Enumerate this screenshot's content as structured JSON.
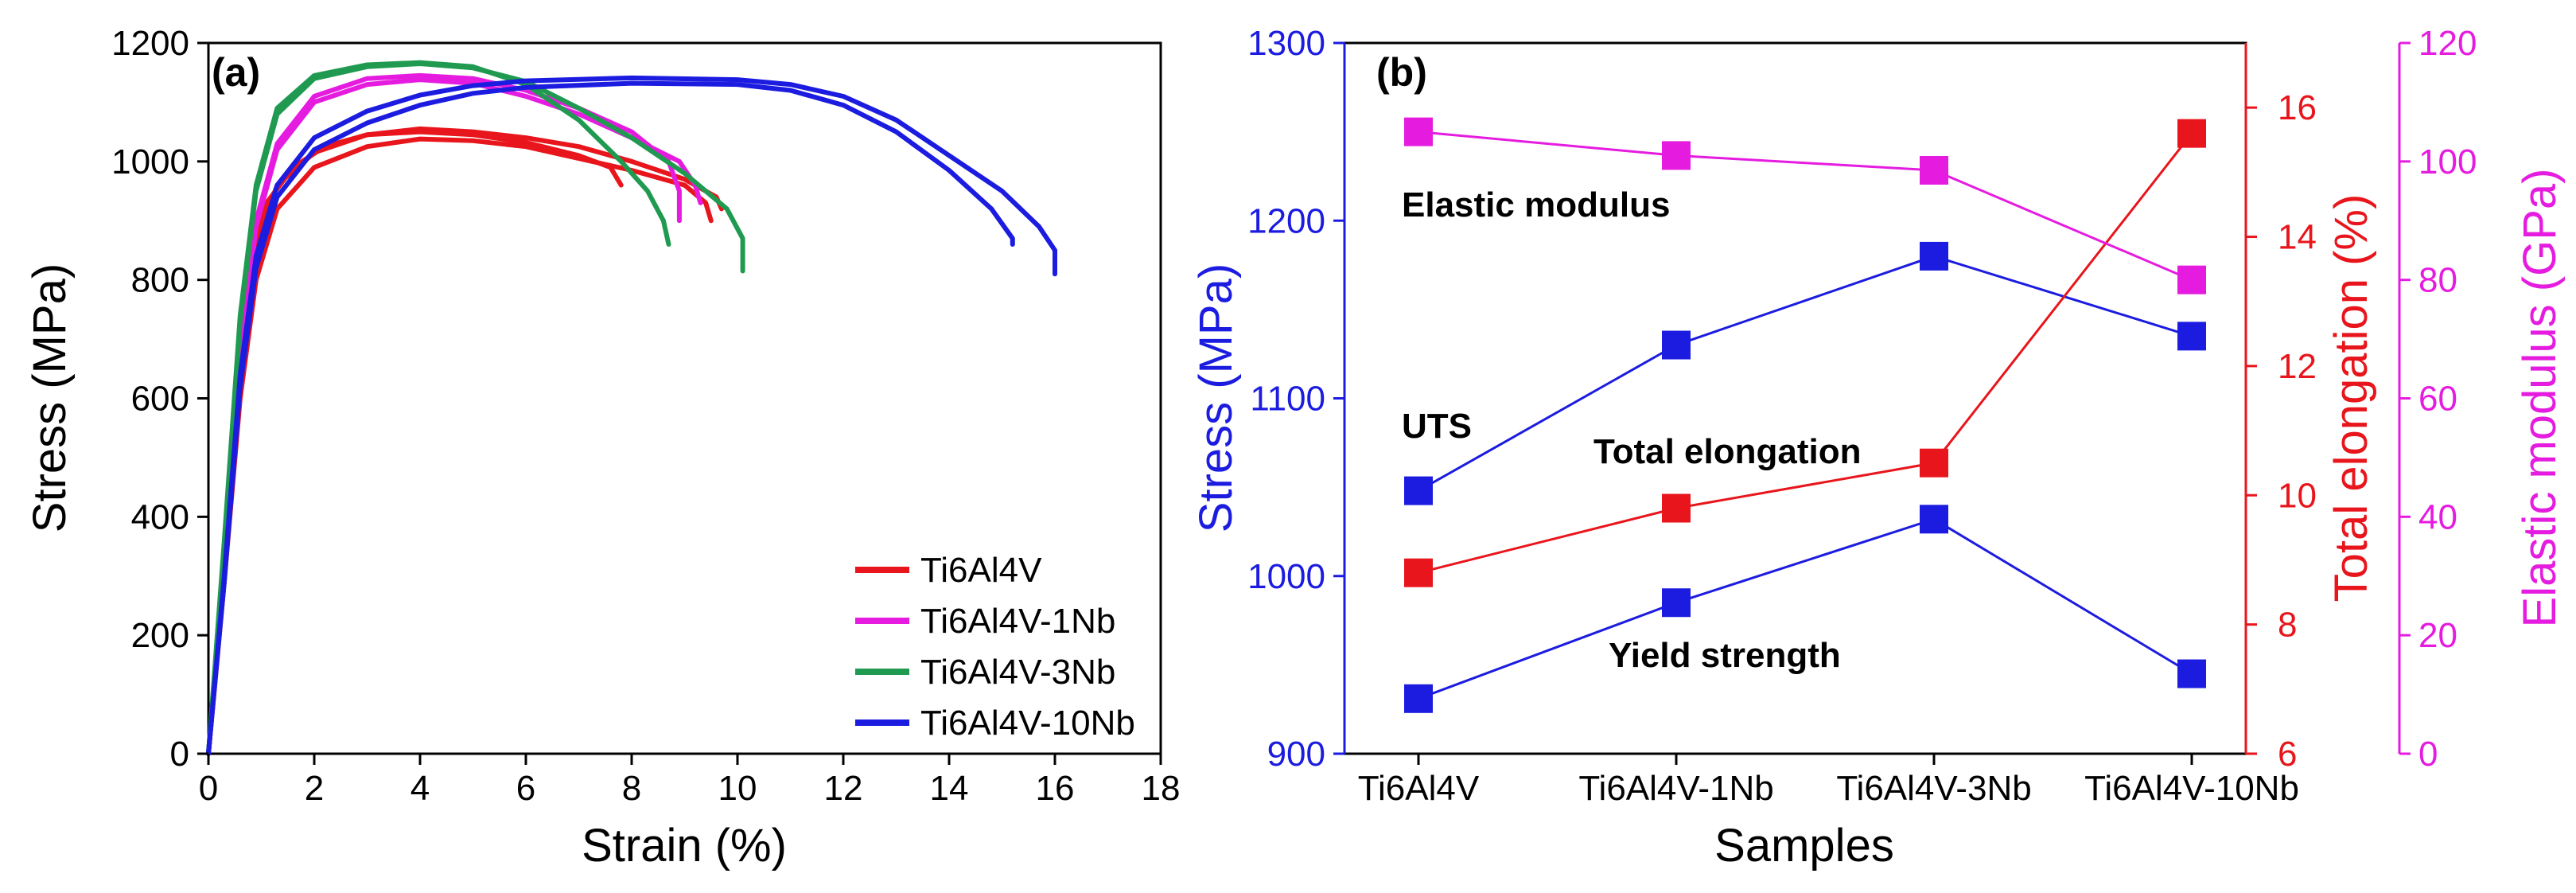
{
  "chart_data": [
    {
      "type": "line",
      "panel_label": "(a)",
      "xlabel": "Strain (%)",
      "ylabel": "Stress (MPa)",
      "xlim": [
        0,
        18
      ],
      "ylim": [
        0,
        1200
      ],
      "xticks": [
        0,
        2,
        4,
        6,
        8,
        10,
        12,
        14,
        16,
        18
      ],
      "yticks": [
        0,
        200,
        400,
        600,
        800,
        1000,
        1200
      ],
      "grid": false,
      "legend_position": "bottom-right",
      "series": [
        {
          "name": "Ti6Al4V",
          "color": "#e8161c",
          "curves": [
            [
              [
                0,
                0
              ],
              [
                0.3,
                300
              ],
              [
                0.55,
                620
              ],
              [
                0.8,
                820
              ],
              [
                1.1,
                930
              ],
              [
                1.6,
                990
              ],
              [
                2.2,
                1025
              ],
              [
                3,
                1045
              ],
              [
                4,
                1050
              ],
              [
                5,
                1045
              ],
              [
                6,
                1032
              ],
              [
                7,
                1010
              ],
              [
                7.6,
                990
              ],
              [
                7.8,
                960
              ]
            ],
            [
              [
                0,
                0
              ],
              [
                0.3,
                320
              ],
              [
                0.6,
                660
              ],
              [
                0.9,
                860
              ],
              [
                1.3,
                960
              ],
              [
                2,
                1015
              ],
              [
                3,
                1045
              ],
              [
                4,
                1055
              ],
              [
                5,
                1050
              ],
              [
                6,
                1040
              ],
              [
                7,
                1025
              ],
              [
                8,
                1000
              ],
              [
                9,
                970
              ],
              [
                9.6,
                940
              ],
              [
                9.7,
                920
              ]
            ],
            [
              [
                0,
                0
              ],
              [
                0.3,
                290
              ],
              [
                0.6,
                600
              ],
              [
                0.9,
                800
              ],
              [
                1.3,
                920
              ],
              [
                2,
                990
              ],
              [
                3,
                1025
              ],
              [
                4,
                1038
              ],
              [
                5,
                1035
              ],
              [
                6,
                1025
              ],
              [
                7,
                1005
              ],
              [
                8,
                985
              ],
              [
                9,
                960
              ],
              [
                9.4,
                930
              ],
              [
                9.5,
                900
              ]
            ]
          ]
        },
        {
          "name": "Ti6Al4V-1Nb",
          "color": "#e51ce0",
          "curves": [
            [
              [
                0,
                0
              ],
              [
                0.3,
                330
              ],
              [
                0.6,
                680
              ],
              [
                0.9,
                900
              ],
              [
                1.3,
                1030
              ],
              [
                2,
                1110
              ],
              [
                3,
                1140
              ],
              [
                4,
                1145
              ],
              [
                5,
                1140
              ],
              [
                6,
                1120
              ],
              [
                7,
                1090
              ],
              [
                8,
                1050
              ],
              [
                8.7,
                1000
              ],
              [
                8.9,
                950
              ],
              [
                8.9,
                900
              ]
            ],
            [
              [
                0,
                0
              ],
              [
                0.3,
                320
              ],
              [
                0.6,
                670
              ],
              [
                0.9,
                890
              ],
              [
                1.3,
                1020
              ],
              [
                2,
                1100
              ],
              [
                3,
                1130
              ],
              [
                4,
                1138
              ],
              [
                5,
                1132
              ],
              [
                6,
                1110
              ],
              [
                7,
                1080
              ],
              [
                8,
                1040
              ],
              [
                8.9,
                1000
              ],
              [
                9.2,
                960
              ],
              [
                9.3,
                930
              ]
            ]
          ]
        },
        {
          "name": "Ti6Al4V-3Nb",
          "color": "#1f9a50",
          "curves": [
            [
              [
                0,
                0
              ],
              [
                0.3,
                360
              ],
              [
                0.6,
                740
              ],
              [
                0.9,
                960
              ],
              [
                1.3,
                1090
              ],
              [
                2,
                1145
              ],
              [
                3,
                1163
              ],
              [
                4,
                1167
              ],
              [
                5,
                1160
              ],
              [
                6,
                1130
              ],
              [
                7,
                1070
              ],
              [
                7.8,
                1000
              ],
              [
                8.3,
                950
              ],
              [
                8.6,
                900
              ],
              [
                8.7,
                860
              ]
            ],
            [
              [
                0,
                0
              ],
              [
                0.3,
                350
              ],
              [
                0.6,
                730
              ],
              [
                0.9,
                950
              ],
              [
                1.3,
                1080
              ],
              [
                2,
                1140
              ],
              [
                3,
                1160
              ],
              [
                4,
                1165
              ],
              [
                5,
                1158
              ],
              [
                6,
                1135
              ],
              [
                7,
                1090
              ],
              [
                8,
                1040
              ],
              [
                9,
                980
              ],
              [
                9.8,
                920
              ],
              [
                10.1,
                870
              ],
              [
                10.1,
                815
              ]
            ]
          ]
        },
        {
          "name": "Ti6Al4V-10Nb",
          "color": "#1c1ce0",
          "curves": [
            [
              [
                0,
                0
              ],
              [
                0.3,
                290
              ],
              [
                0.6,
                620
              ],
              [
                0.9,
                820
              ],
              [
                1.3,
                940
              ],
              [
                2,
                1020
              ],
              [
                3,
                1065
              ],
              [
                4,
                1095
              ],
              [
                5,
                1115
              ],
              [
                6,
                1125
              ],
              [
                8,
                1132
              ],
              [
                10,
                1130
              ],
              [
                11,
                1120
              ],
              [
                12,
                1095
              ],
              [
                13,
                1050
              ],
              [
                14,
                985
              ],
              [
                14.8,
                920
              ],
              [
                15.2,
                870
              ],
              [
                15.2,
                860
              ]
            ],
            [
              [
                0,
                0
              ],
              [
                0.3,
                300
              ],
              [
                0.6,
                640
              ],
              [
                0.9,
                840
              ],
              [
                1.3,
                960
              ],
              [
                2,
                1040
              ],
              [
                3,
                1085
              ],
              [
                4,
                1112
              ],
              [
                5,
                1128
              ],
              [
                6,
                1136
              ],
              [
                8,
                1141
              ],
              [
                10,
                1138
              ],
              [
                11,
                1130
              ],
              [
                12,
                1110
              ],
              [
                13,
                1070
              ],
              [
                14,
                1010
              ],
              [
                15,
                950
              ],
              [
                15.7,
                890
              ],
              [
                16,
                850
              ],
              [
                16,
                810
              ]
            ]
          ]
        }
      ]
    },
    {
      "type": "line",
      "panel_label": "(b)",
      "xlabel": "Samples",
      "categories": [
        "Ti6Al4V",
        "Ti6Al4V-1Nb",
        "Ti6Al4V-3Nb",
        "Ti6Al4V-10Nb"
      ],
      "axes": {
        "left": {
          "label": "Stress (MPa)",
          "range": [
            900,
            1300
          ],
          "ticks": [
            900,
            1000,
            1100,
            1200,
            1300
          ],
          "color": "#1c1ce0"
        },
        "right1": {
          "label": "Total elongation (%)",
          "range": [
            6,
            17
          ],
          "ticks": [
            6,
            8,
            10,
            12,
            14,
            16
          ],
          "color": "#e8161c"
        },
        "right2": {
          "label": "Elastic modulus (GPa)",
          "range": [
            0,
            120
          ],
          "ticks": [
            0,
            20,
            40,
            60,
            80,
            100,
            120
          ],
          "color": "#e51ce0"
        }
      },
      "grid": false,
      "series": [
        {
          "name": "UTS",
          "axis": "left",
          "color": "#1c1ce0",
          "values": [
            1048,
            1130,
            1180,
            1135
          ]
        },
        {
          "name": "Yield strength",
          "axis": "left",
          "color": "#1c1ce0",
          "values": [
            931,
            985,
            1032,
            945
          ]
        },
        {
          "name": "Total elongation",
          "axis": "right1",
          "color": "#e8161c",
          "values": [
            8.8,
            9.8,
            10.5,
            15.6
          ]
        },
        {
          "name": "Elastic modulus",
          "axis": "right2",
          "color": "#e51ce0",
          "values": [
            105,
            101,
            98.5,
            80
          ]
        }
      ]
    }
  ]
}
